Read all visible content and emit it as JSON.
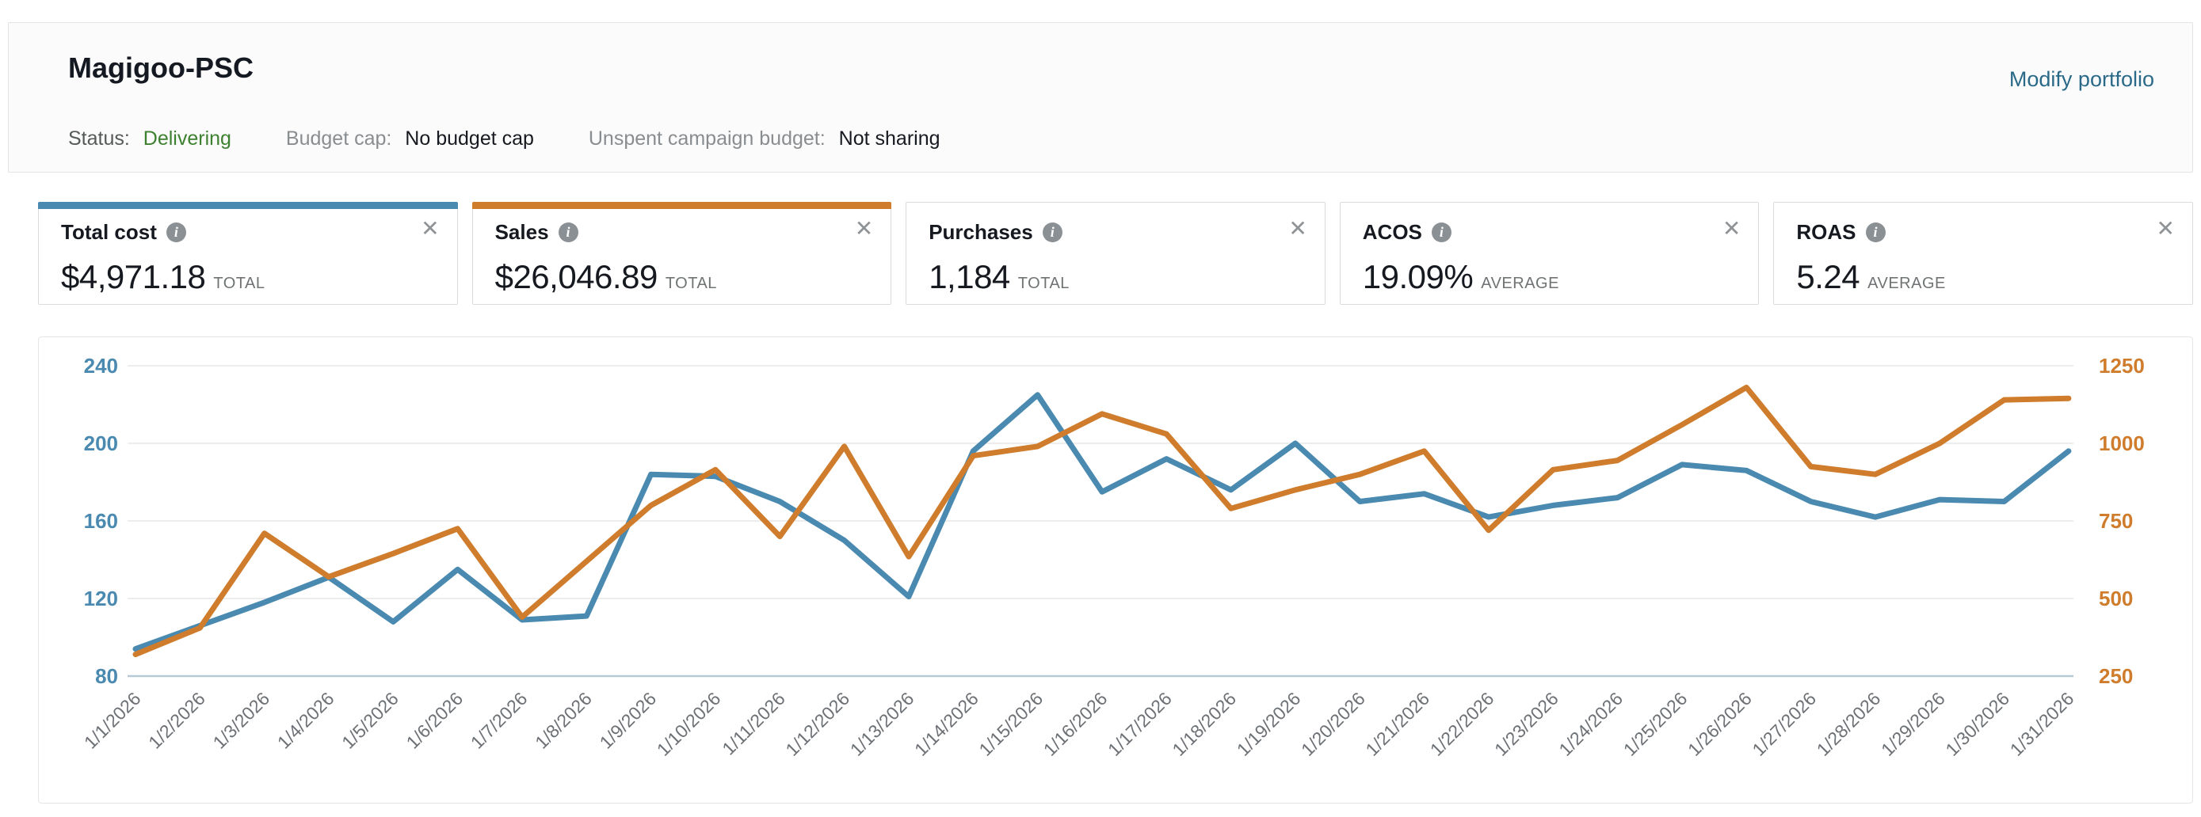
{
  "header": {
    "title": "Magigoo-PSC",
    "modify_link": "Modify portfolio",
    "status_label": "Status:",
    "status_value": "Delivering",
    "status_color": "#3d8130",
    "budget_cap_label": "Budget cap:",
    "budget_cap_value": "No budget cap",
    "unspent_label": "Unspent campaign budget:",
    "unspent_value": "Not sharing"
  },
  "metrics": {
    "cards": [
      {
        "label": "Total cost",
        "value": "$4,971.18",
        "unit": "TOTAL",
        "accent": "#4A8AB0"
      },
      {
        "label": "Sales",
        "value": "$26,046.89",
        "unit": "TOTAL",
        "accent": "#CF7C2C"
      },
      {
        "label": "Purchases",
        "value": "1,184",
        "unit": "TOTAL",
        "accent": null
      },
      {
        "label": "ACOS",
        "value": "19.09%",
        "unit": "AVERAGE",
        "accent": null
      },
      {
        "label": "ROAS",
        "value": "5.24",
        "unit": "AVERAGE",
        "accent": null
      }
    ],
    "info_icon_glyph": "i",
    "close_icon_glyph": "✕"
  },
  "chart_data": {
    "type": "line",
    "title": "",
    "grid": true,
    "legend_position": "none",
    "x_labels": [
      "1/1/2026",
      "1/2/2026",
      "1/3/2026",
      "1/4/2026",
      "1/5/2026",
      "1/6/2026",
      "1/7/2026",
      "1/8/2026",
      "1/9/2026",
      "1/10/2026",
      "1/11/2026",
      "1/12/2026",
      "1/13/2026",
      "1/14/2026",
      "1/15/2026",
      "1/16/2026",
      "1/17/2026",
      "1/18/2026",
      "1/19/2026",
      "1/20/2026",
      "1/21/2026",
      "1/22/2026",
      "1/23/2026",
      "1/24/2026",
      "1/25/2026",
      "1/26/2026",
      "1/27/2026",
      "1/28/2026",
      "1/29/2026",
      "1/30/2026",
      "1/31/2026"
    ],
    "left_axis": {
      "label": "Total cost",
      "ticks": [
        240,
        200,
        160,
        120,
        80
      ],
      "range": [
        80,
        240
      ],
      "color": "#4A8AB0"
    },
    "right_axis": {
      "label": "Sales",
      "ticks": [
        1250,
        1000,
        750,
        500,
        250
      ],
      "range": [
        250,
        1250
      ],
      "color": "#CF7C2C"
    },
    "series": [
      {
        "name": "Total cost",
        "axis": "left",
        "color": "#4A8AB0",
        "values": [
          94,
          106,
          118,
          131,
          108,
          135,
          109,
          111,
          184,
          183,
          170,
          150,
          121,
          196,
          225,
          175,
          192,
          176,
          200,
          170,
          174,
          162,
          168,
          172,
          189,
          186,
          170,
          162,
          171,
          170,
          196
        ]
      },
      {
        "name": "Sales",
        "axis": "right",
        "color": "#CF7C2C",
        "values": [
          320,
          405,
          710,
          570,
          645,
          725,
          440,
          620,
          800,
          915,
          700,
          990,
          635,
          960,
          990,
          1095,
          1030,
          790,
          850,
          900,
          975,
          720,
          915,
          945,
          1060,
          1180,
          925,
          900,
          1000,
          1140,
          1145
        ]
      }
    ],
    "x_label_color": "#6d7175",
    "gridline_color": "#ededed",
    "baseline_color": "#b7c9d6"
  }
}
